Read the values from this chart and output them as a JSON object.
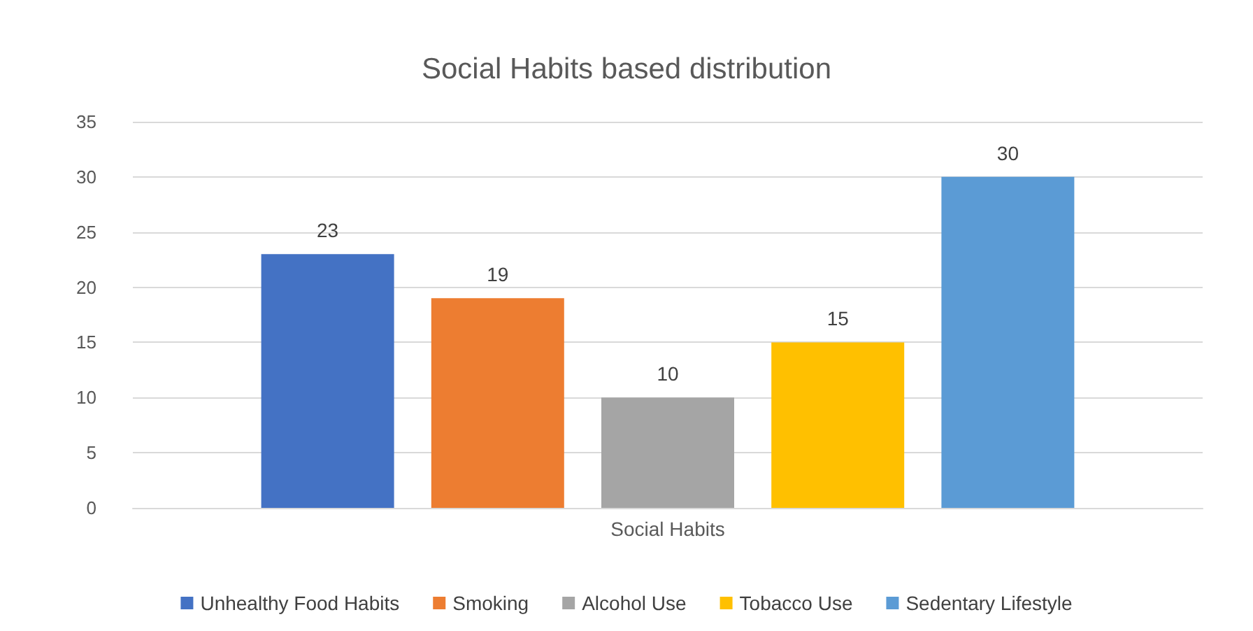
{
  "chart_data": {
    "type": "bar",
    "title": "Social Habits based distribution",
    "categories": [
      "Social Habits"
    ],
    "series": [
      {
        "name": "Unhealthy Food Habits",
        "color": "#4472c4",
        "values": [
          23
        ]
      },
      {
        "name": "Smoking",
        "color": "#ed7d31",
        "values": [
          19
        ]
      },
      {
        "name": "Alcohol Use",
        "color": "#a5a5a5",
        "values": [
          10
        ]
      },
      {
        "name": "Tobacco Use",
        "color": "#ffc000",
        "values": [
          15
        ]
      },
      {
        "name": "Sedentary Lifestyle",
        "color": "#5b9bd5",
        "values": [
          30
        ]
      }
    ],
    "ylim": [
      0,
      35
    ],
    "yticks": [
      0,
      5,
      10,
      15,
      20,
      25,
      30,
      35
    ],
    "grid": "y",
    "legend": "bottom",
    "data_labels": true
  }
}
